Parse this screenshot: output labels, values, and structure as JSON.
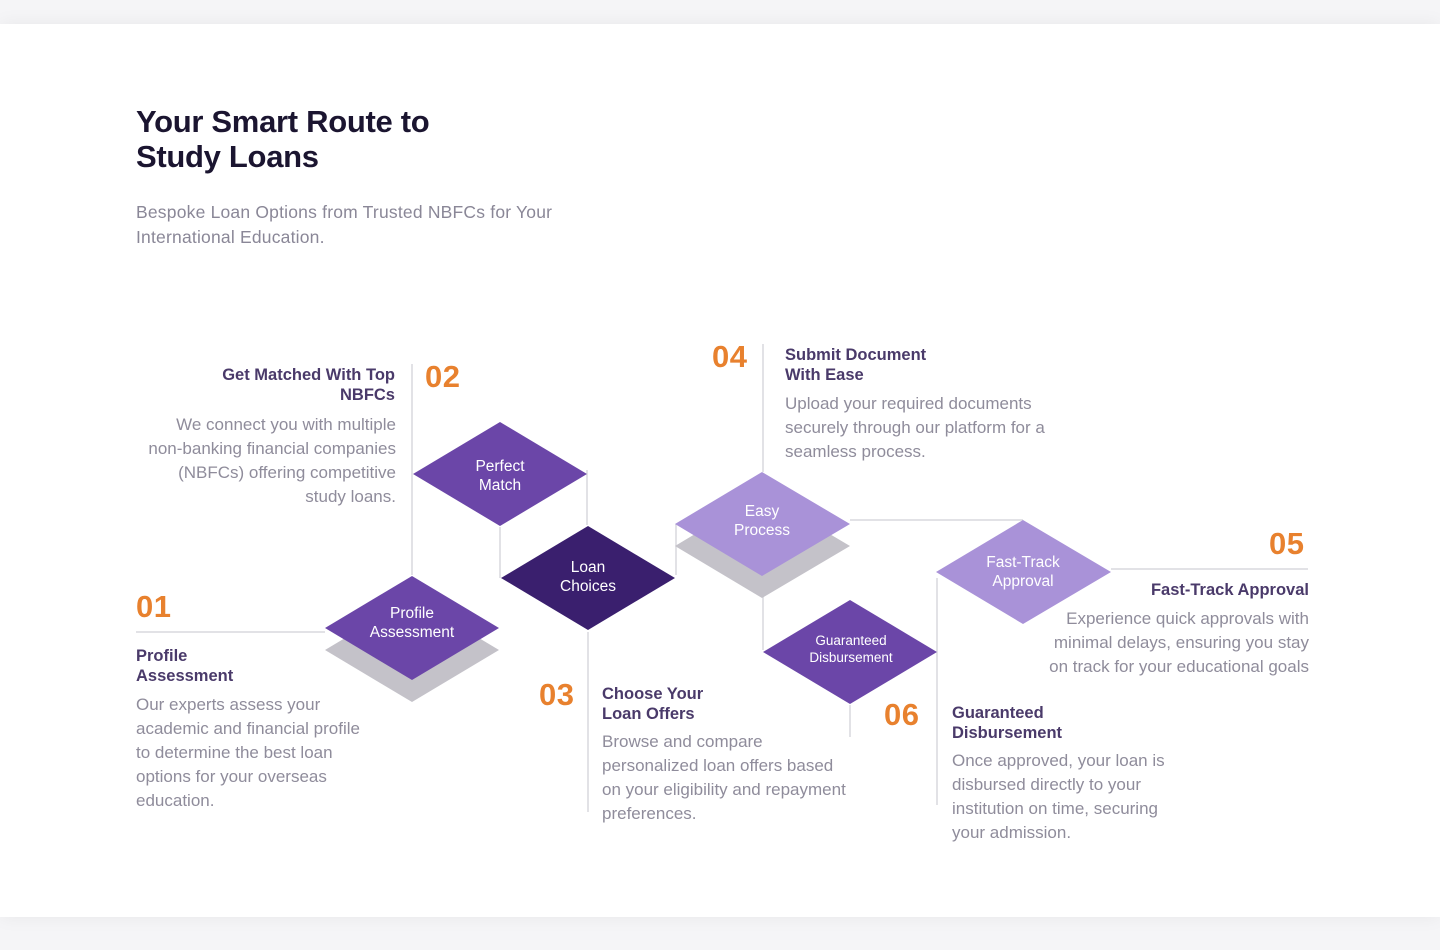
{
  "header": {
    "title": "Your Smart Route to Study Loans",
    "subtitle": "Bespoke Loan Options from Trusted NBFCs for Your International Education."
  },
  "steps": [
    {
      "number": "01",
      "heading": "Profile Assessment",
      "description": "Our experts assess your academic and financial profile to determine the best loan options for your overseas education."
    },
    {
      "number": "02",
      "heading": "Get Matched With Top NBFCs",
      "description": "We connect you with multiple non-banking financial companies (NBFCs) offering competitive study loans."
    },
    {
      "number": "03",
      "heading": "Choose Your Loan Offers",
      "description": "Browse and compare personalized loan offers based on your eligibility and repayment preferences."
    },
    {
      "number": "04",
      "heading": "Submit Document With Ease",
      "description": "Upload your required documents securely through our platform for a seamless process."
    },
    {
      "number": "05",
      "heading": "Fast-Track Approval",
      "description": "Experience quick approvals with minimal delays, ensuring you stay on track for your educational goals"
    },
    {
      "number": "06",
      "heading": "Guaranteed Disbursement",
      "description": "Once approved, your loan is disbursed directly to your institution on time, securing your admission."
    }
  ],
  "diamonds": [
    {
      "label": "Profile Assessment",
      "color": "#6b46a8"
    },
    {
      "label": "Perfect Match",
      "color": "#6b46a8"
    },
    {
      "label": "Loan Choices",
      "color": "#3a1f6e"
    },
    {
      "label": "Easy Process",
      "color": "#a992d8"
    },
    {
      "label": "Guaranteed Disbursement",
      "color": "#6b46a8"
    },
    {
      "label": "Fast-Track Approval",
      "color": "#a992d8"
    }
  ],
  "colors": {
    "accent": "#e8812e",
    "shadow": "#c4c2c9",
    "line": "#d9d8de"
  }
}
